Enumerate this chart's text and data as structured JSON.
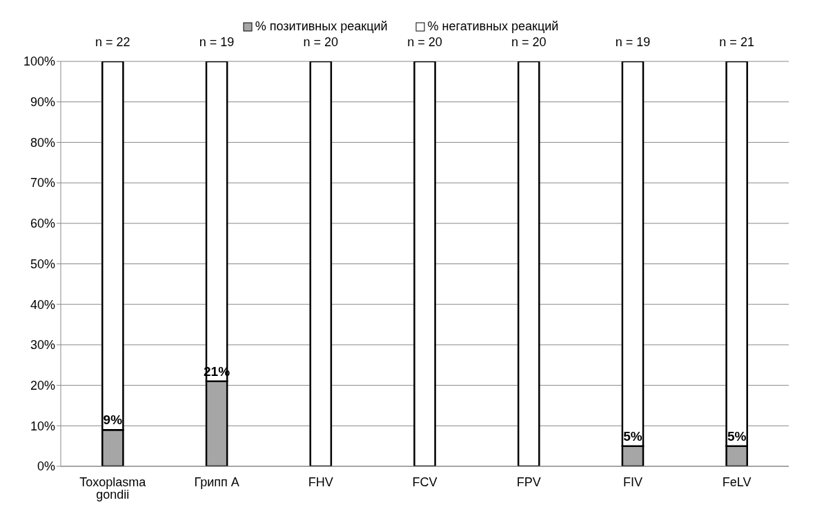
{
  "chart_data": {
    "type": "bar",
    "stacked": true,
    "categories": [
      "Toxoplasma gondii",
      "Грипп А",
      "FHV",
      "FCV",
      "FPV",
      "FIV",
      "FeLV"
    ],
    "series": [
      {
        "name": "% позитивных реакций",
        "color": "#a6a6a6",
        "values": [
          9,
          21,
          0,
          0,
          0,
          5,
          5
        ],
        "value_labels": [
          "9%",
          "21%",
          null,
          null,
          null,
          "5%",
          "5%"
        ]
      },
      {
        "name": "% негативных реакций",
        "color": "#ffffff",
        "values": [
          91,
          79,
          100,
          100,
          100,
          95,
          95
        ]
      }
    ],
    "ylim": [
      0,
      100
    ],
    "yticks": [
      {
        "value": 0,
        "label": "0%"
      },
      {
        "value": 10,
        "label": "10%"
      },
      {
        "value": 20,
        "label": "20%"
      },
      {
        "value": 30,
        "label": "30%"
      },
      {
        "value": 40,
        "label": "40%"
      },
      {
        "value": 50,
        "label": "50%"
      },
      {
        "value": 60,
        "label": "60%"
      },
      {
        "value": 70,
        "label": "70%"
      },
      {
        "value": 80,
        "label": "80%"
      },
      {
        "value": 90,
        "label": "90%"
      },
      {
        "value": 100,
        "label": "100%"
      }
    ],
    "grid": "y",
    "legend": "top",
    "annotations": [
      {
        "text": "n = 22",
        "x": "Toxoplasma gondii",
        "y": 100
      },
      {
        "text": "n = 19",
        "x": "Грипп А",
        "y": 100
      },
      {
        "text": "n = 20",
        "x": "FHV",
        "y": 100
      },
      {
        "text": "n = 20",
        "x": "FCV",
        "y": 100
      },
      {
        "text": "n = 20",
        "x": "FPV",
        "y": 100
      },
      {
        "text": "n = 19",
        "x": "FIV",
        "y": 100
      },
      {
        "text": "n = 21",
        "x": "FeLV",
        "y": 100
      }
    ]
  }
}
